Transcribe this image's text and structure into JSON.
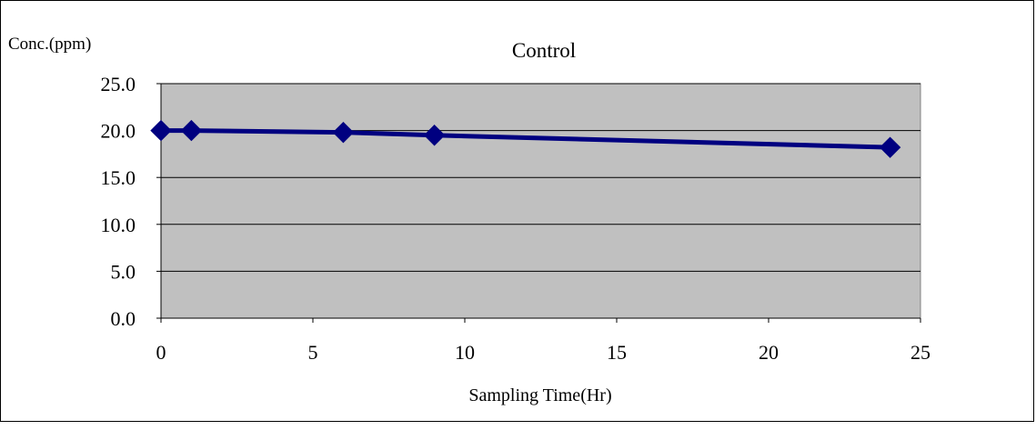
{
  "chart_data": {
    "type": "line",
    "title": "Control",
    "ylabel": "Conc.(ppm)",
    "xlabel": "Sampling Time(Hr)",
    "xlim": [
      0,
      25
    ],
    "ylim": [
      0,
      25
    ],
    "xticks": [
      0,
      5,
      10,
      15,
      20,
      25
    ],
    "yticks": [
      "0.0",
      "5.0",
      "10.0",
      "15.0",
      "20.0",
      "25.0"
    ],
    "grid": true,
    "plot_background": "#c0c0c0",
    "series": [
      {
        "color": "#000080",
        "marker": "diamond",
        "x": [
          0,
          1,
          6,
          9,
          24
        ],
        "y": [
          20.0,
          20.0,
          19.8,
          19.5,
          18.2
        ]
      }
    ]
  }
}
